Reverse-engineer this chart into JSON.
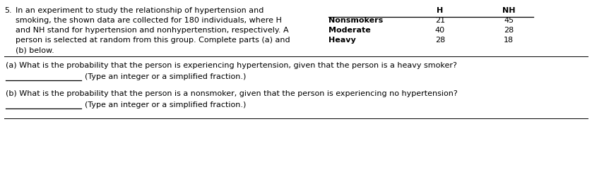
{
  "problem_number": "5.",
  "main_text_lines": [
    "In an experiment to study the relationship of hypertension and",
    "smoking, the shown data are collected for 180 individuals, where H",
    "and NH stand for hypertension and nonhypertenstion, respectively. A",
    "person is selected at random from this group. Complete parts (a) and",
    "(b) below."
  ],
  "table_col_labels": [
    "H",
    "NH"
  ],
  "table_rows": [
    [
      "Nonsmokers",
      "21",
      "45"
    ],
    [
      "Moderate",
      "40",
      "28"
    ],
    [
      "Heavy",
      "28",
      "18"
    ]
  ],
  "part_a_text": "(a) What is the probability that the person is experiencing hypertension, given that the person is a heavy smoker?",
  "part_a_sub": "(Type an integer or a simplified fraction.)",
  "part_b_text": "(b) What is the probability that the person is a nonsmoker, given that the person is experiencing no hypertension?",
  "part_b_sub": "(Type an integer or a simplified fraction.)",
  "bg_color": "#ffffff",
  "text_color": "#000000",
  "font_size": 8.0,
  "line_color": "#000000",
  "fig_width": 8.38,
  "fig_height": 2.47,
  "dpi": 100
}
